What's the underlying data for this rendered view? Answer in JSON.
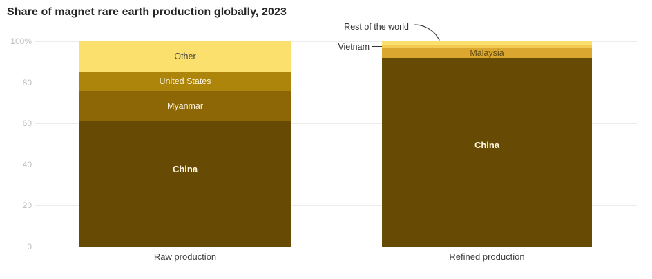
{
  "title": "Share of magnet rare earth production globally, 2023",
  "colors": {
    "china": "#674A04",
    "myanmar": "#8D6606",
    "united_states": "#AC850A",
    "malaysia": "#DCA72E",
    "vietnam": "#F2CB52",
    "other": "#FCE06E",
    "grid": "#ECECEC",
    "baseline": "#D2D2D2",
    "tick_label": "#BDBDBD",
    "axis_label": "#404040",
    "title_text": "#262626"
  },
  "chart_data": {
    "type": "bar",
    "stacked": true,
    "unit": "%",
    "title": "Share of magnet rare earth production globally, 2023",
    "categories": [
      "Raw production",
      "Refined production"
    ],
    "ylabel": "",
    "xlabel": "",
    "ylim": [
      0,
      100
    ],
    "grid": true,
    "y_tick_values": [
      0,
      20,
      40,
      60,
      80,
      100
    ],
    "y_ticks": [
      "0",
      "20",
      "40",
      "60",
      "80",
      "100%"
    ],
    "bars": [
      {
        "label": "Raw production",
        "segments": [
          {
            "name": "China",
            "value": 61,
            "color": "#674A04",
            "label_color": "#FDF6DF",
            "show_label": true,
            "emphasis": true
          },
          {
            "name": "Myanmar",
            "value": 15,
            "color": "#8D6606",
            "label_color": "#FBF3DC",
            "show_label": true
          },
          {
            "name": "United States",
            "value": 9,
            "color": "#AC850A",
            "label_color": "#FBF3DC",
            "show_label": true
          },
          {
            "name": "Other",
            "value": 15,
            "color": "#FCE06E",
            "label_color": "#3D3D3D",
            "show_label": true
          }
        ]
      },
      {
        "label": "Refined production",
        "segments": [
          {
            "name": "China",
            "value": 92,
            "color": "#674A04",
            "label_color": "#FDF6DF",
            "show_label": true,
            "emphasis": true
          },
          {
            "name": "Malaysia",
            "value": 4.5,
            "color": "#DCA72E",
            "label_color": "#5E4A14",
            "show_label": true
          },
          {
            "name": "Vietnam",
            "value": 1.5,
            "color": "#F2CB52",
            "label_color": "#333333",
            "show_label": false
          },
          {
            "name": "Rest of the world",
            "value": 2,
            "color": "#FCE06E",
            "label_color": "#333333",
            "show_label": false
          }
        ]
      }
    ],
    "annotations": {
      "rest_of_world": "Rest of the world",
      "vietnam": "Vietnam"
    }
  }
}
